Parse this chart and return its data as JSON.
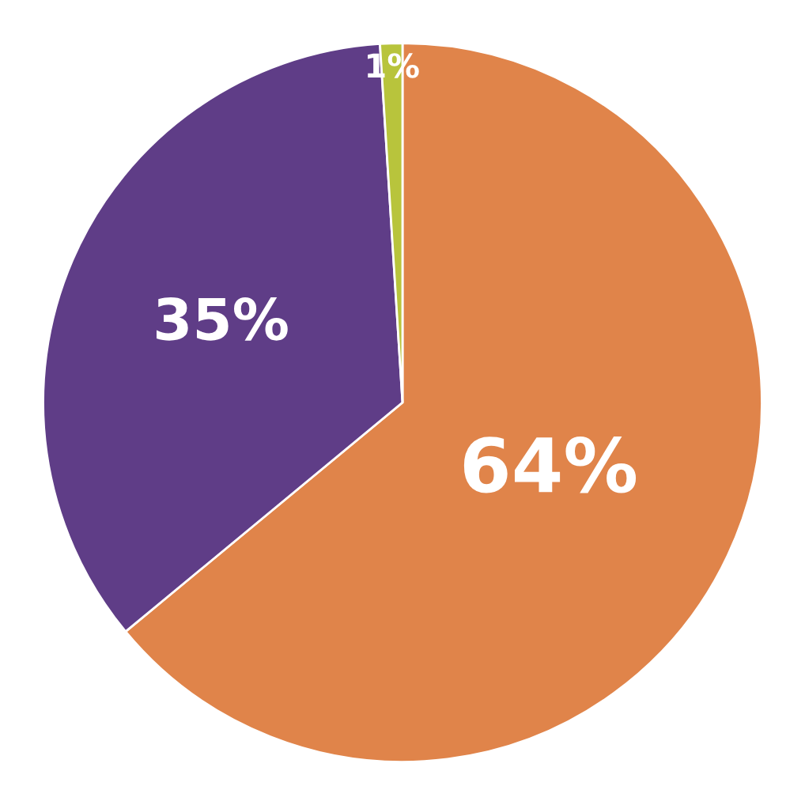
{
  "chart_data": {
    "type": "pie",
    "categories": [
      null,
      null,
      null
    ],
    "values": [
      64,
      35,
      1
    ],
    "colors": [
      "#e0844a",
      "#5f3d87",
      "#b8c43c"
    ],
    "value_labels": [
      "64%",
      "35%",
      "1%"
    ]
  }
}
